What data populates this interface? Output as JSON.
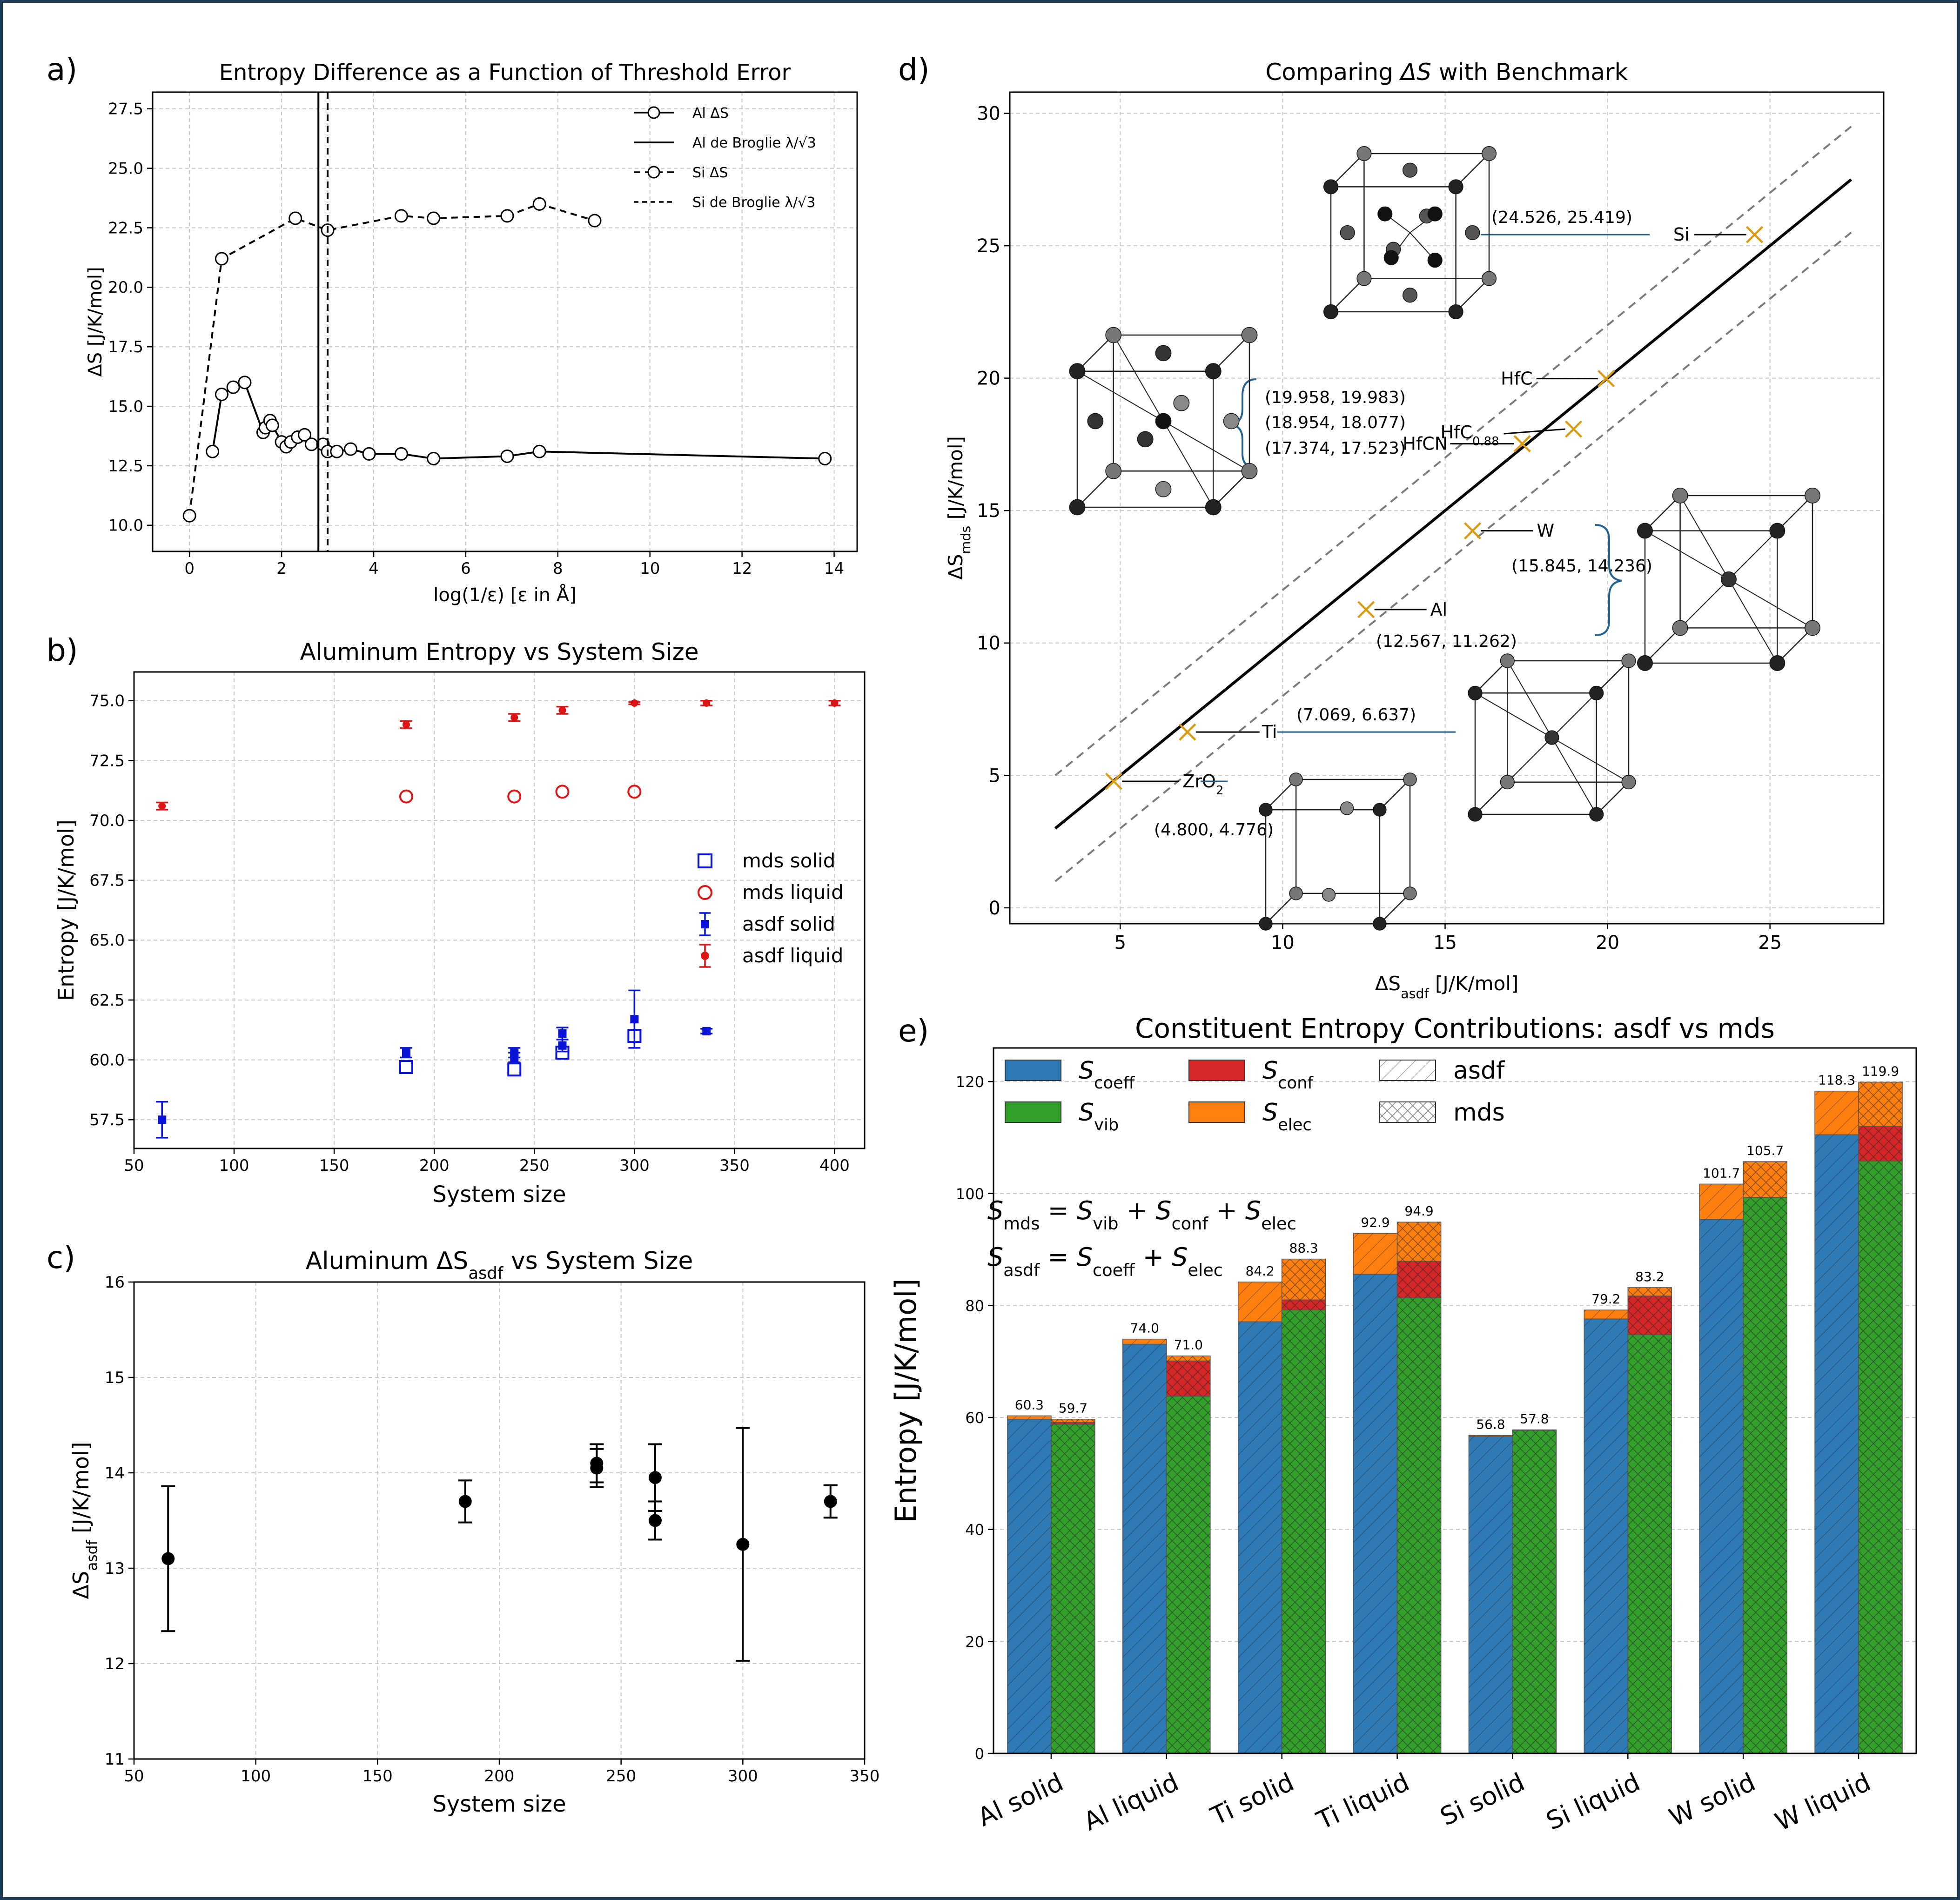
{
  "panel_labels": [
    "a)",
    "b)",
    "c)",
    "d)",
    "e)"
  ],
  "chart_data": [
    {
      "id": "a",
      "type": "line",
      "title": "Entropy Difference as a Function of Threshold Error",
      "xlabel": "log(1/ε)  [ε in Å]",
      "ylabel": "ΔS [J/K/mol]",
      "xlim": [
        -0.8,
        14.5
      ],
      "ylim": [
        8.9,
        28.2
      ],
      "xticks": [
        0,
        2,
        4,
        6,
        8,
        10,
        12,
        14
      ],
      "yticks": [
        10.0,
        12.5,
        15.0,
        17.5,
        20.0,
        22.5,
        25.0,
        27.5
      ],
      "grid": true,
      "legend_position": "top-right",
      "series": [
        {
          "name": "Al ΔS",
          "style": "solid",
          "marker": "circle-open",
          "x": [
            0.5,
            0.7,
            0.95,
            1.2,
            1.6,
            1.65,
            1.75,
            1.8,
            2.0,
            2.1,
            2.2,
            2.35,
            2.5,
            2.65,
            2.9,
            3.0,
            3.2,
            3.5,
            3.9,
            4.6,
            5.3,
            6.9,
            7.6,
            13.8
          ],
          "y": [
            13.1,
            15.5,
            15.8,
            16.0,
            13.9,
            14.1,
            14.4,
            14.2,
            13.5,
            13.3,
            13.5,
            13.7,
            13.8,
            13.4,
            13.4,
            13.1,
            13.1,
            13.2,
            13.0,
            13.0,
            12.8,
            12.9,
            13.1,
            12.8
          ]
        },
        {
          "name": "Si ΔS",
          "style": "dashed",
          "marker": "circle-open",
          "x": [
            0,
            0.7,
            2.3,
            3.0,
            4.6,
            5.3,
            6.9,
            7.6,
            8.8
          ],
          "y": [
            10.4,
            21.2,
            22.9,
            22.4,
            23.0,
            22.9,
            23.0,
            23.5,
            22.8
          ]
        }
      ],
      "vlines": [
        {
          "name": "Al de Broglie λ/√3",
          "x": 2.8,
          "style": "solid"
        },
        {
          "name": "Si de Broglie λ/√3",
          "x": 3.0,
          "style": "dashed"
        }
      ]
    },
    {
      "id": "b",
      "type": "scatter",
      "title": "Aluminum Entropy vs System Size",
      "xlabel": "System size",
      "ylabel": "Entropy [J/K/mol]",
      "xlim": [
        50,
        415
      ],
      "ylim": [
        56.3,
        76.2
      ],
      "xticks": [
        50,
        100,
        150,
        200,
        250,
        300,
        350,
        400
      ],
      "yticks": [
        57.5,
        60.0,
        62.5,
        65.0,
        67.5,
        70.0,
        72.5,
        75.0
      ],
      "grid": true,
      "legend_position": "center-right",
      "series": [
        {
          "name": "mds solid",
          "marker": "square-open",
          "color": "#0a14d8",
          "x": [
            186,
            240,
            264,
            300
          ],
          "y": [
            59.7,
            59.6,
            60.3,
            61.0
          ]
        },
        {
          "name": "mds liquid",
          "marker": "circle-open",
          "color": "#dc1616",
          "x": [
            186,
            240,
            264,
            300
          ],
          "y": [
            71.0,
            71.0,
            71.2,
            71.2
          ]
        },
        {
          "name": "asdf solid",
          "marker": "square-filled",
          "color": "#0a14d8",
          "x": [
            64,
            186,
            240,
            240,
            264,
            264,
            300,
            336
          ],
          "y": [
            57.5,
            60.3,
            60.3,
            60.1,
            61.1,
            60.6,
            61.7,
            61.2
          ],
          "err": [
            0.75,
            0.2,
            0.2,
            0.2,
            0.25,
            0.25,
            1.2,
            0.1
          ]
        },
        {
          "name": "asdf liquid",
          "marker": "circle-filled",
          "color": "#dc1616",
          "x": [
            64,
            186,
            240,
            264,
            300,
            336,
            400
          ],
          "y": [
            70.6,
            74.0,
            74.3,
            74.6,
            74.9,
            74.9,
            74.9
          ],
          "err": [
            0.15,
            0.15,
            0.15,
            0.15,
            0.05,
            0.1,
            0.1
          ]
        }
      ]
    },
    {
      "id": "c",
      "type": "scatter",
      "title": "Aluminum ΔS",
      "title_sub": "asdf",
      "title_suffix": " vs System Size",
      "xlabel": "System size",
      "ylabel": "ΔS",
      "ylabel_sub": "asdf",
      "ylabel_suffix": "  [J/K/mol]",
      "xlim": [
        50,
        350
      ],
      "ylim": [
        11,
        16
      ],
      "xticks": [
        50,
        100,
        150,
        200,
        250,
        300,
        350
      ],
      "yticks": [
        11,
        12,
        13,
        14,
        15,
        16
      ],
      "grid": true,
      "series": [
        {
          "name": "asdf",
          "marker": "circle-filled",
          "x": [
            64,
            186,
            240,
            240,
            264,
            264,
            300,
            336
          ],
          "y": [
            13.1,
            13.7,
            14.1,
            14.05,
            13.95,
            13.5,
            13.25,
            13.7
          ],
          "err": [
            0.76,
            0.22,
            0.2,
            0.2,
            0.35,
            0.2,
            1.22,
            0.17
          ]
        }
      ]
    },
    {
      "id": "d",
      "type": "scatter",
      "title": "Comparing ΔS with Benchmark",
      "xlabel": "ΔS",
      "xlabel_sub": "asdf",
      "xlabel_suffix": "  [J/K/mol]",
      "ylabel": "ΔS",
      "ylabel_sub": "mds",
      "ylabel_suffix": "  [J/K/mol]",
      "xlim": [
        1.6,
        28.5
      ],
      "ylim": [
        -0.6,
        30.8
      ],
      "xticks": [
        5,
        10,
        15,
        20,
        25
      ],
      "yticks": [
        0,
        5,
        10,
        15,
        20,
        25,
        30
      ],
      "grid": true,
      "reference_line": {
        "x": [
          3,
          27.5
        ],
        "offset": 2
      },
      "points": [
        {
          "name": "Si",
          "x": 24.526,
          "y": 25.419,
          "coord": "(24.526, 25.419)"
        },
        {
          "name": "HfC",
          "x": 19.958,
          "y": 19.983,
          "coord": "(19.958, 19.983)"
        },
        {
          "name": "HfC",
          "sub": "0.88",
          "x": 18.954,
          "y": 18.077,
          "coord": "(18.954, 18.077)"
        },
        {
          "name": "HfCN",
          "x": 17.374,
          "y": 17.523,
          "coord": "(17.374, 17.523)"
        },
        {
          "name": "W",
          "x": 15.845,
          "y": 14.236,
          "coord": "(15.845, 14.236)"
        },
        {
          "name": "Al",
          "x": 12.567,
          "y": 11.262,
          "coord": "(12.567, 11.262)"
        },
        {
          "name": "Ti",
          "x": 7.069,
          "y": 6.637,
          "coord": "(7.069, 6.637)"
        },
        {
          "name": "ZrO",
          "sub": "2",
          "x": 4.8,
          "y": 4.776,
          "coord": "(4.800, 4.776)"
        }
      ]
    },
    {
      "id": "e",
      "type": "bar",
      "title": "Constituent Entropy Contributions: asdf vs mds",
      "ylabel": "Entropy [J/K/mol]",
      "ylim": [
        0,
        126
      ],
      "yticks": [
        0,
        20,
        40,
        60,
        80,
        100,
        120
      ],
      "grid": true,
      "categories": [
        "Al solid",
        "Al liquid",
        "Ti solid",
        "Ti liquid",
        "Si solid",
        "Si liquid",
        "W solid",
        "W liquid"
      ],
      "series": [
        {
          "name": "asdf",
          "hatch": "diagonal",
          "components": [
            "S_coeff",
            "S_elec"
          ],
          "S_coeff": [
            59.7,
            73.1,
            77.1,
            85.6,
            56.6,
            77.6,
            95.4,
            110.5
          ],
          "S_elec": [
            0.6,
            0.9,
            7.1,
            7.3,
            0.2,
            1.6,
            6.3,
            7.8
          ],
          "totals": [
            "60.3",
            "74.0",
            "84.2",
            "92.9",
            "56.8",
            "79.2",
            "101.7",
            "118.3"
          ]
        },
        {
          "name": "mds",
          "hatch": "cross",
          "components": [
            "S_vib",
            "S_conf",
            "S_elec"
          ],
          "S_vib": [
            58.8,
            63.8,
            79.2,
            81.4,
            57.7,
            74.8,
            99.3,
            105.8
          ],
          "S_conf": [
            0.3,
            6.3,
            1.8,
            6.5,
            0.0,
            6.9,
            0.0,
            6.2
          ],
          "S_elec": [
            0.6,
            0.9,
            7.3,
            7.0,
            0.1,
            1.5,
            6.4,
            7.9
          ],
          "totals": [
            "59.7",
            "71.0",
            "88.3",
            "94.9",
            "57.8",
            "83.2",
            "105.7",
            "119.9"
          ]
        }
      ],
      "colors": {
        "S_coeff": "#2f79b5",
        "S_vib": "#33a02c",
        "S_conf": "#d62728",
        "S_elec": "#ff7f0e"
      },
      "legend": [
        {
          "key": "S_coeff",
          "label": "S",
          "sub": "coeff"
        },
        {
          "key": "S_conf",
          "label": "S",
          "sub": "conf"
        },
        {
          "key": "hatch_asdf",
          "label": "asdf"
        },
        {
          "key": "S_vib",
          "label": "S",
          "sub": "vib"
        },
        {
          "key": "S_elec",
          "label": "S",
          "sub": "elec"
        },
        {
          "key": "hatch_mds",
          "label": "mds"
        }
      ],
      "equations": [
        {
          "lhs": "mds",
          "terms": [
            [
              "S",
              "vib"
            ],
            [
              "S",
              "conf"
            ],
            [
              "S",
              "elec"
            ]
          ]
        },
        {
          "lhs": "asdf",
          "terms": [
            [
              "S",
              "coeff"
            ],
            [
              "S",
              "elec"
            ]
          ]
        }
      ]
    }
  ]
}
